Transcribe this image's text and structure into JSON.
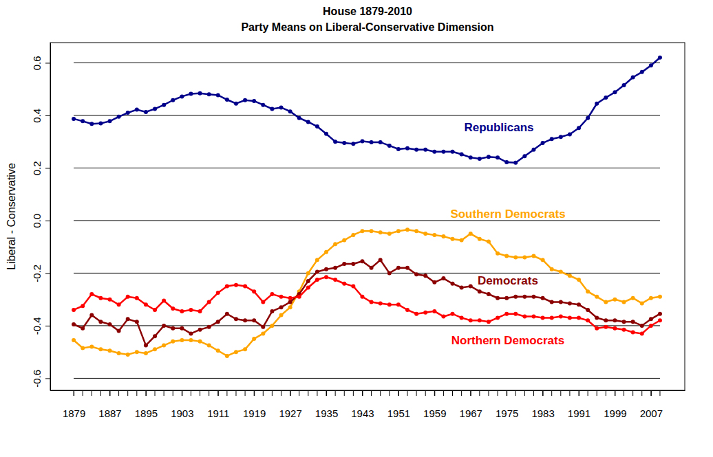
{
  "chart_data": {
    "type": "line",
    "title": "House 1879-2010",
    "subtitle": "Party Means on Liberal-Conservative Dimension",
    "y_label": "Liberal - Conservative",
    "x": [
      1879,
      1881,
      1883,
      1885,
      1887,
      1889,
      1891,
      1893,
      1895,
      1897,
      1899,
      1901,
      1903,
      1905,
      1907,
      1909,
      1911,
      1913,
      1915,
      1917,
      1919,
      1921,
      1923,
      1925,
      1927,
      1929,
      1931,
      1933,
      1935,
      1937,
      1939,
      1941,
      1943,
      1945,
      1947,
      1949,
      1951,
      1953,
      1955,
      1957,
      1959,
      1961,
      1963,
      1965,
      1967,
      1969,
      1971,
      1973,
      1975,
      1977,
      1979,
      1981,
      1983,
      1985,
      1987,
      1989,
      1991,
      1993,
      1995,
      1997,
      1999,
      2001,
      2003,
      2005,
      2007,
      2009
    ],
    "xlim": [
      1873.8,
      2014.5
    ],
    "xticks": [
      1879,
      1887,
      1895,
      1903,
      1911,
      1919,
      1927,
      1935,
      1943,
      1951,
      1959,
      1967,
      1975,
      1983,
      1991,
      1999,
      2007
    ],
    "ylim": [
      -0.646,
      0.677
    ],
    "yticks": [
      -0.6,
      -0.4,
      -0.2,
      {
        "value": 0,
        "label": "0.0"
      },
      0.2,
      0.4,
      0.6
    ],
    "grid": true,
    "marker": "circle",
    "series": [
      {
        "name": "Republicans",
        "color": "#00008b",
        "values": [
          0.387,
          0.378,
          0.368,
          0.37,
          0.378,
          0.395,
          0.41,
          0.422,
          0.413,
          0.425,
          0.44,
          0.458,
          0.472,
          0.482,
          0.484,
          0.48,
          0.477,
          0.46,
          0.445,
          0.458,
          0.455,
          0.44,
          0.425,
          0.43,
          0.415,
          0.39,
          0.375,
          0.358,
          0.33,
          0.3,
          0.295,
          0.292,
          0.302,
          0.298,
          0.298,
          0.285,
          0.272,
          0.275,
          0.27,
          0.27,
          0.262,
          0.262,
          0.262,
          0.252,
          0.24,
          0.235,
          0.242,
          0.24,
          0.222,
          0.22,
          0.245,
          0.27,
          0.295,
          0.31,
          0.318,
          0.328,
          0.352,
          0.39,
          0.445,
          0.468,
          0.488,
          0.515,
          0.545,
          0.565,
          0.59,
          0.62
        ]
      },
      {
        "name": "Southern Democrats",
        "color": "#ffa500",
        "values": [
          -0.455,
          -0.485,
          -0.48,
          -0.49,
          -0.495,
          -0.505,
          -0.51,
          -0.5,
          -0.505,
          -0.49,
          -0.475,
          -0.46,
          -0.455,
          -0.455,
          -0.46,
          -0.475,
          -0.495,
          -0.515,
          -0.5,
          -0.49,
          -0.45,
          -0.43,
          -0.4,
          -0.36,
          -0.33,
          -0.27,
          -0.2,
          -0.15,
          -0.12,
          -0.09,
          -0.075,
          -0.055,
          -0.04,
          -0.04,
          -0.045,
          -0.05,
          -0.04,
          -0.035,
          -0.04,
          -0.05,
          -0.055,
          -0.06,
          -0.07,
          -0.075,
          -0.05,
          -0.07,
          -0.08,
          -0.125,
          -0.135,
          -0.14,
          -0.14,
          -0.135,
          -0.15,
          -0.185,
          -0.195,
          -0.21,
          -0.225,
          -0.27,
          -0.29,
          -0.31,
          -0.3,
          -0.31,
          -0.295,
          -0.315,
          -0.295,
          -0.29
        ]
      },
      {
        "name": "Democrats",
        "color": "#8b0000",
        "values": [
          -0.395,
          -0.41,
          -0.36,
          -0.385,
          -0.395,
          -0.42,
          -0.375,
          -0.385,
          -0.475,
          -0.44,
          -0.4,
          -0.41,
          -0.41,
          -0.43,
          -0.415,
          -0.405,
          -0.385,
          -0.355,
          -0.375,
          -0.38,
          -0.38,
          -0.405,
          -0.345,
          -0.33,
          -0.31,
          -0.28,
          -0.23,
          -0.195,
          -0.185,
          -0.18,
          -0.165,
          -0.165,
          -0.155,
          -0.18,
          -0.15,
          -0.2,
          -0.18,
          -0.18,
          -0.205,
          -0.21,
          -0.235,
          -0.22,
          -0.24,
          -0.255,
          -0.25,
          -0.27,
          -0.28,
          -0.295,
          -0.295,
          -0.29,
          -0.29,
          -0.29,
          -0.295,
          -0.31,
          -0.31,
          -0.315,
          -0.32,
          -0.34,
          -0.37,
          -0.38,
          -0.38,
          -0.385,
          -0.385,
          -0.4,
          -0.375,
          -0.355
        ]
      },
      {
        "name": "Northern Democrats",
        "color": "#ff0000",
        "values": [
          -0.34,
          -0.325,
          -0.28,
          -0.295,
          -0.3,
          -0.32,
          -0.29,
          -0.295,
          -0.32,
          -0.34,
          -0.305,
          -0.335,
          -0.345,
          -0.34,
          -0.345,
          -0.31,
          -0.275,
          -0.25,
          -0.245,
          -0.25,
          -0.27,
          -0.31,
          -0.28,
          -0.29,
          -0.295,
          -0.29,
          -0.255,
          -0.225,
          -0.215,
          -0.225,
          -0.24,
          -0.25,
          -0.29,
          -0.31,
          -0.315,
          -0.32,
          -0.32,
          -0.34,
          -0.355,
          -0.35,
          -0.345,
          -0.365,
          -0.355,
          -0.37,
          -0.38,
          -0.38,
          -0.385,
          -0.37,
          -0.355,
          -0.355,
          -0.365,
          -0.365,
          -0.37,
          -0.37,
          -0.365,
          -0.37,
          -0.37,
          -0.38,
          -0.41,
          -0.405,
          -0.41,
          -0.415,
          -0.425,
          -0.43,
          -0.4,
          -0.38
        ]
      }
    ]
  }
}
